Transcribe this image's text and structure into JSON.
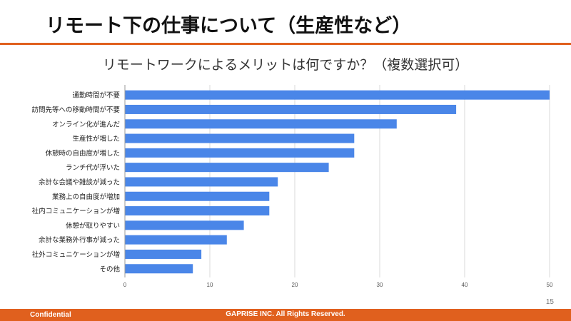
{
  "slide": {
    "title": "リモート下の仕事について（生産性など）",
    "page_number": "15",
    "footer_left": "Confidential",
    "footer_center": "GAPRISE  INC.  All Rights Reserved."
  },
  "colors": {
    "accent": "#e0601e",
    "bar": "#4a86e8",
    "grid": "#d9d9d9"
  },
  "chart_data": {
    "type": "bar",
    "orientation": "horizontal",
    "title": "リモートワークによるメリットは何ですか？（複数選択可）",
    "categories": [
      "通勤時間が不要",
      "訪問先等への移動時間が不要",
      "オンライン化が進んだ",
      "生産性が増した",
      "休憩時の自由度が増した",
      "ランチ代が浮いた",
      "余計な会議や雑談が減った",
      "業務上の自由度が増加",
      "社内コミュニケーションが増",
      "休憩が取りやすい",
      "余計な業務外行事が減った",
      "社外コミュニケーションが増",
      "その他"
    ],
    "values": [
      50,
      39,
      32,
      27,
      27,
      24,
      18,
      17,
      17,
      14,
      12,
      9,
      8
    ],
    "xlim": [
      0,
      50
    ],
    "xticks": [
      0,
      10,
      20,
      30,
      40,
      50
    ],
    "grid": true,
    "legend": "none",
    "xlabel": "",
    "ylabel": ""
  }
}
